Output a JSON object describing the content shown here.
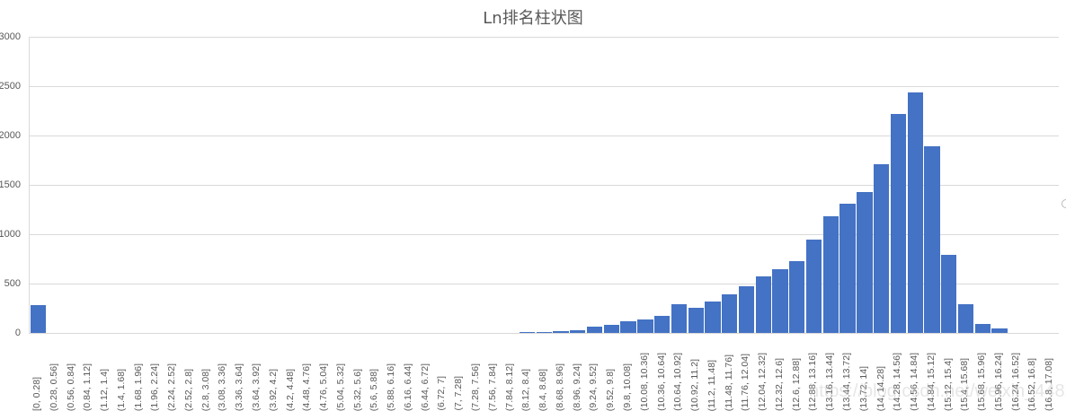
{
  "chart_data": {
    "type": "bar",
    "title": "Ln排名柱状图",
    "xlabel": "",
    "ylabel": "",
    "ylim": [
      0,
      3000
    ],
    "yticks": [
      0,
      500,
      1000,
      1500,
      2000,
      2500,
      3000
    ],
    "grid": true,
    "legend": null,
    "bar_color": "#4472c4",
    "categories": [
      "[0, 0.28]",
      "(0.28, 0.56]",
      "(0.56, 0.84]",
      "(0.84, 1.12]",
      "(1.12, 1.4]",
      "(1.4, 1.68]",
      "(1.68, 1.96]",
      "(1.96, 2.24]",
      "(2.24, 2.52]",
      "(2.52, 2.8]",
      "(2.8, 3.08]",
      "(3.08, 3.36]",
      "(3.36, 3.64]",
      "(3.64, 3.92]",
      "(3.92, 4.2]",
      "(4.2, 4.48]",
      "(4.48, 4.76]",
      "(4.76, 5.04]",
      "(5.04, 5.32]",
      "(5.32, 5.6]",
      "(5.6, 5.88]",
      "(5.88, 6.16]",
      "(6.16, 6.44]",
      "(6.44, 6.72]",
      "(6.72, 7]",
      "(7, 7.28]",
      "(7.28, 7.56]",
      "(7.56, 7.84]",
      "(7.84, 8.12]",
      "(8.12, 8.4]",
      "(8.4, 8.68]",
      "(8.68, 8.96]",
      "(8.96, 9.24]",
      "(9.24, 9.52]",
      "(9.52, 9.8]",
      "(9.8, 10.08]",
      "(10.08, 10.36]",
      "(10.36, 10.64]",
      "(10.64, 10.92]",
      "(10.92, 11.2]",
      "(11.2, 11.48]",
      "(11.48, 11.76]",
      "(11.76, 12.04]",
      "(12.04, 12.32]",
      "(12.32, 12.6]",
      "(12.6, 12.88]",
      "(12.88, 13.16]",
      "(13.16, 13.44]",
      "(13.44, 13.72]",
      "(13.72, 14]",
      "(14, 14.28]",
      "(14.28, 14.56]",
      "(14.56, 14.84]",
      "(14.84, 15.12]",
      "(15.12, 15.4]",
      "(15.4, 15.68]",
      "(15.68, 15.96]",
      "(15.96, 16.24]",
      "(16.24, 16.52]",
      "(16.52, 16.8]",
      "(16.8, 17.08]"
    ],
    "values": [
      285,
      0,
      0,
      0,
      0,
      0,
      0,
      0,
      0,
      0,
      0,
      0,
      0,
      0,
      0,
      0,
      0,
      0,
      0,
      0,
      0,
      0,
      0,
      0,
      0,
      0,
      0,
      0,
      0,
      10,
      10,
      20,
      30,
      60,
      80,
      120,
      135,
      170,
      290,
      255,
      315,
      395,
      470,
      570,
      650,
      725,
      950,
      1180,
      1305,
      1430,
      1710,
      2220,
      2435,
      1890,
      795,
      295,
      95,
      50,
      0,
      0,
      0
    ]
  },
  "watermark": "https://blog.csdn.net/weixin_44820355"
}
